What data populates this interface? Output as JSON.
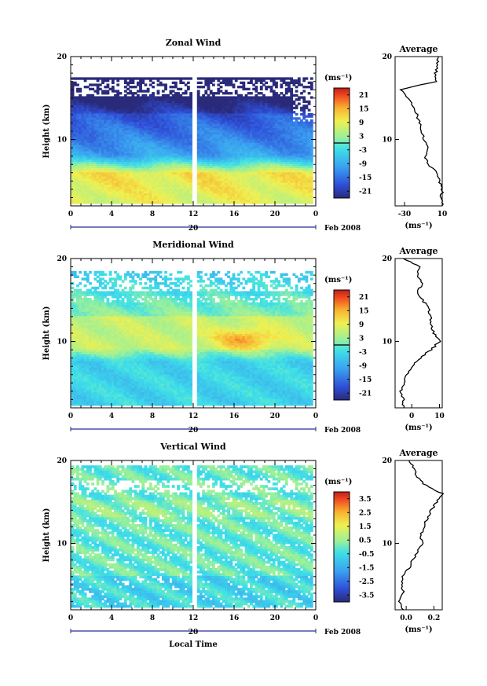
{
  "chart_data": [
    {
      "type": "heatmap",
      "title": "Zonal Wind",
      "ylabel": "Height (km)",
      "xlabel": "",
      "x_ticks": [
        "0",
        "4",
        "8",
        "12",
        "16",
        "20",
        "0"
      ],
      "y_ticks": [
        "10",
        "20"
      ],
      "xlim": [
        0,
        24
      ],
      "ylim": [
        2,
        20
      ],
      "date_label": "20",
      "month_label": "Feb 2008",
      "colorbar": {
        "unit": "(ms⁻¹)",
        "ticks": [
          "21",
          "15",
          "9",
          "3",
          "-3",
          "-9",
          "-15",
          "-21"
        ],
        "range": [
          -24,
          24
        ],
        "contour_level": 0
      },
      "profile": {
        "title": "Average",
        "x_ticks": [
          "-30",
          "10"
        ],
        "xlim": [
          -40,
          10
        ],
        "y_ticks": [
          "10",
          "20"
        ],
        "xlabel": "(ms⁻¹)",
        "heights": [
          2,
          3,
          4,
          5,
          6,
          7,
          8,
          9,
          10,
          11,
          12,
          13,
          14,
          15,
          16,
          17,
          18,
          19,
          20
        ],
        "values": [
          10,
          9,
          10,
          7,
          5,
          -6,
          -8,
          -6,
          -9,
          -12,
          -14,
          -17,
          -20,
          -27,
          -34,
          3,
          3,
          5,
          6
        ]
      }
    },
    {
      "type": "heatmap",
      "title": "Meridional Wind",
      "ylabel": "Height (km)",
      "xlabel": "",
      "x_ticks": [
        "0",
        "4",
        "8",
        "12",
        "16",
        "20",
        "0"
      ],
      "y_ticks": [
        "10",
        "20"
      ],
      "xlim": [
        0,
        24
      ],
      "ylim": [
        2,
        20
      ],
      "date_label": "20",
      "month_label": "Feb 2008",
      "colorbar": {
        "unit": "(ms⁻¹)",
        "ticks": [
          "21",
          "15",
          "9",
          "3",
          "-3",
          "-9",
          "-15",
          "-21"
        ],
        "range": [
          -24,
          24
        ],
        "contour_level": 0
      },
      "profile": {
        "title": "Average",
        "x_ticks": [
          "0",
          "10"
        ],
        "xlim": [
          -6,
          11
        ],
        "y_ticks": [
          "10",
          "20"
        ],
        "xlabel": "(ms⁻¹)",
        "heights": [
          2,
          3,
          4,
          5,
          6,
          7,
          8,
          9,
          10,
          11,
          12,
          13,
          14,
          15,
          16,
          17,
          18,
          19,
          20
        ],
        "values": [
          -3,
          -3,
          -4,
          -3,
          -2,
          0,
          3,
          7,
          10,
          8,
          7,
          7,
          6,
          4,
          2,
          4,
          2,
          3,
          -3
        ]
      }
    },
    {
      "type": "heatmap",
      "title": "Vertical Wind",
      "ylabel": "Height (km)",
      "xlabel": "Local Time",
      "x_ticks": [
        "0",
        "4",
        "8",
        "12",
        "16",
        "20",
        "0"
      ],
      "y_ticks": [
        "10",
        "20"
      ],
      "xlim": [
        0,
        24
      ],
      "ylim": [
        2,
        20
      ],
      "date_label": "20",
      "month_label": "Feb 2008",
      "colorbar": {
        "unit": "(ms⁻¹)",
        "ticks": [
          "3.5",
          "2.5",
          "1.5",
          "0.5",
          "-0.5",
          "-1.5",
          "-2.5",
          "-3.5"
        ],
        "range": [
          -4,
          4
        ],
        "contour_level": null
      },
      "profile": {
        "title": "Average",
        "x_ticks": [
          "0.0",
          "0.2"
        ],
        "xlim": [
          -0.08,
          0.26
        ],
        "y_ticks": [
          "10",
          "20"
        ],
        "xlabel": "(ms⁻¹)",
        "heights": [
          2,
          3,
          4,
          5,
          6,
          7,
          8,
          9,
          10,
          11,
          12,
          13,
          14,
          15,
          16,
          17,
          18,
          19,
          20
        ],
        "values": [
          -0.03,
          -0.05,
          -0.02,
          -0.04,
          -0.02,
          0.02,
          0.05,
          0.08,
          0.12,
          0.1,
          0.13,
          0.15,
          0.18,
          0.22,
          0.26,
          0.14,
          0.08,
          0.06,
          0.02
        ]
      }
    }
  ]
}
